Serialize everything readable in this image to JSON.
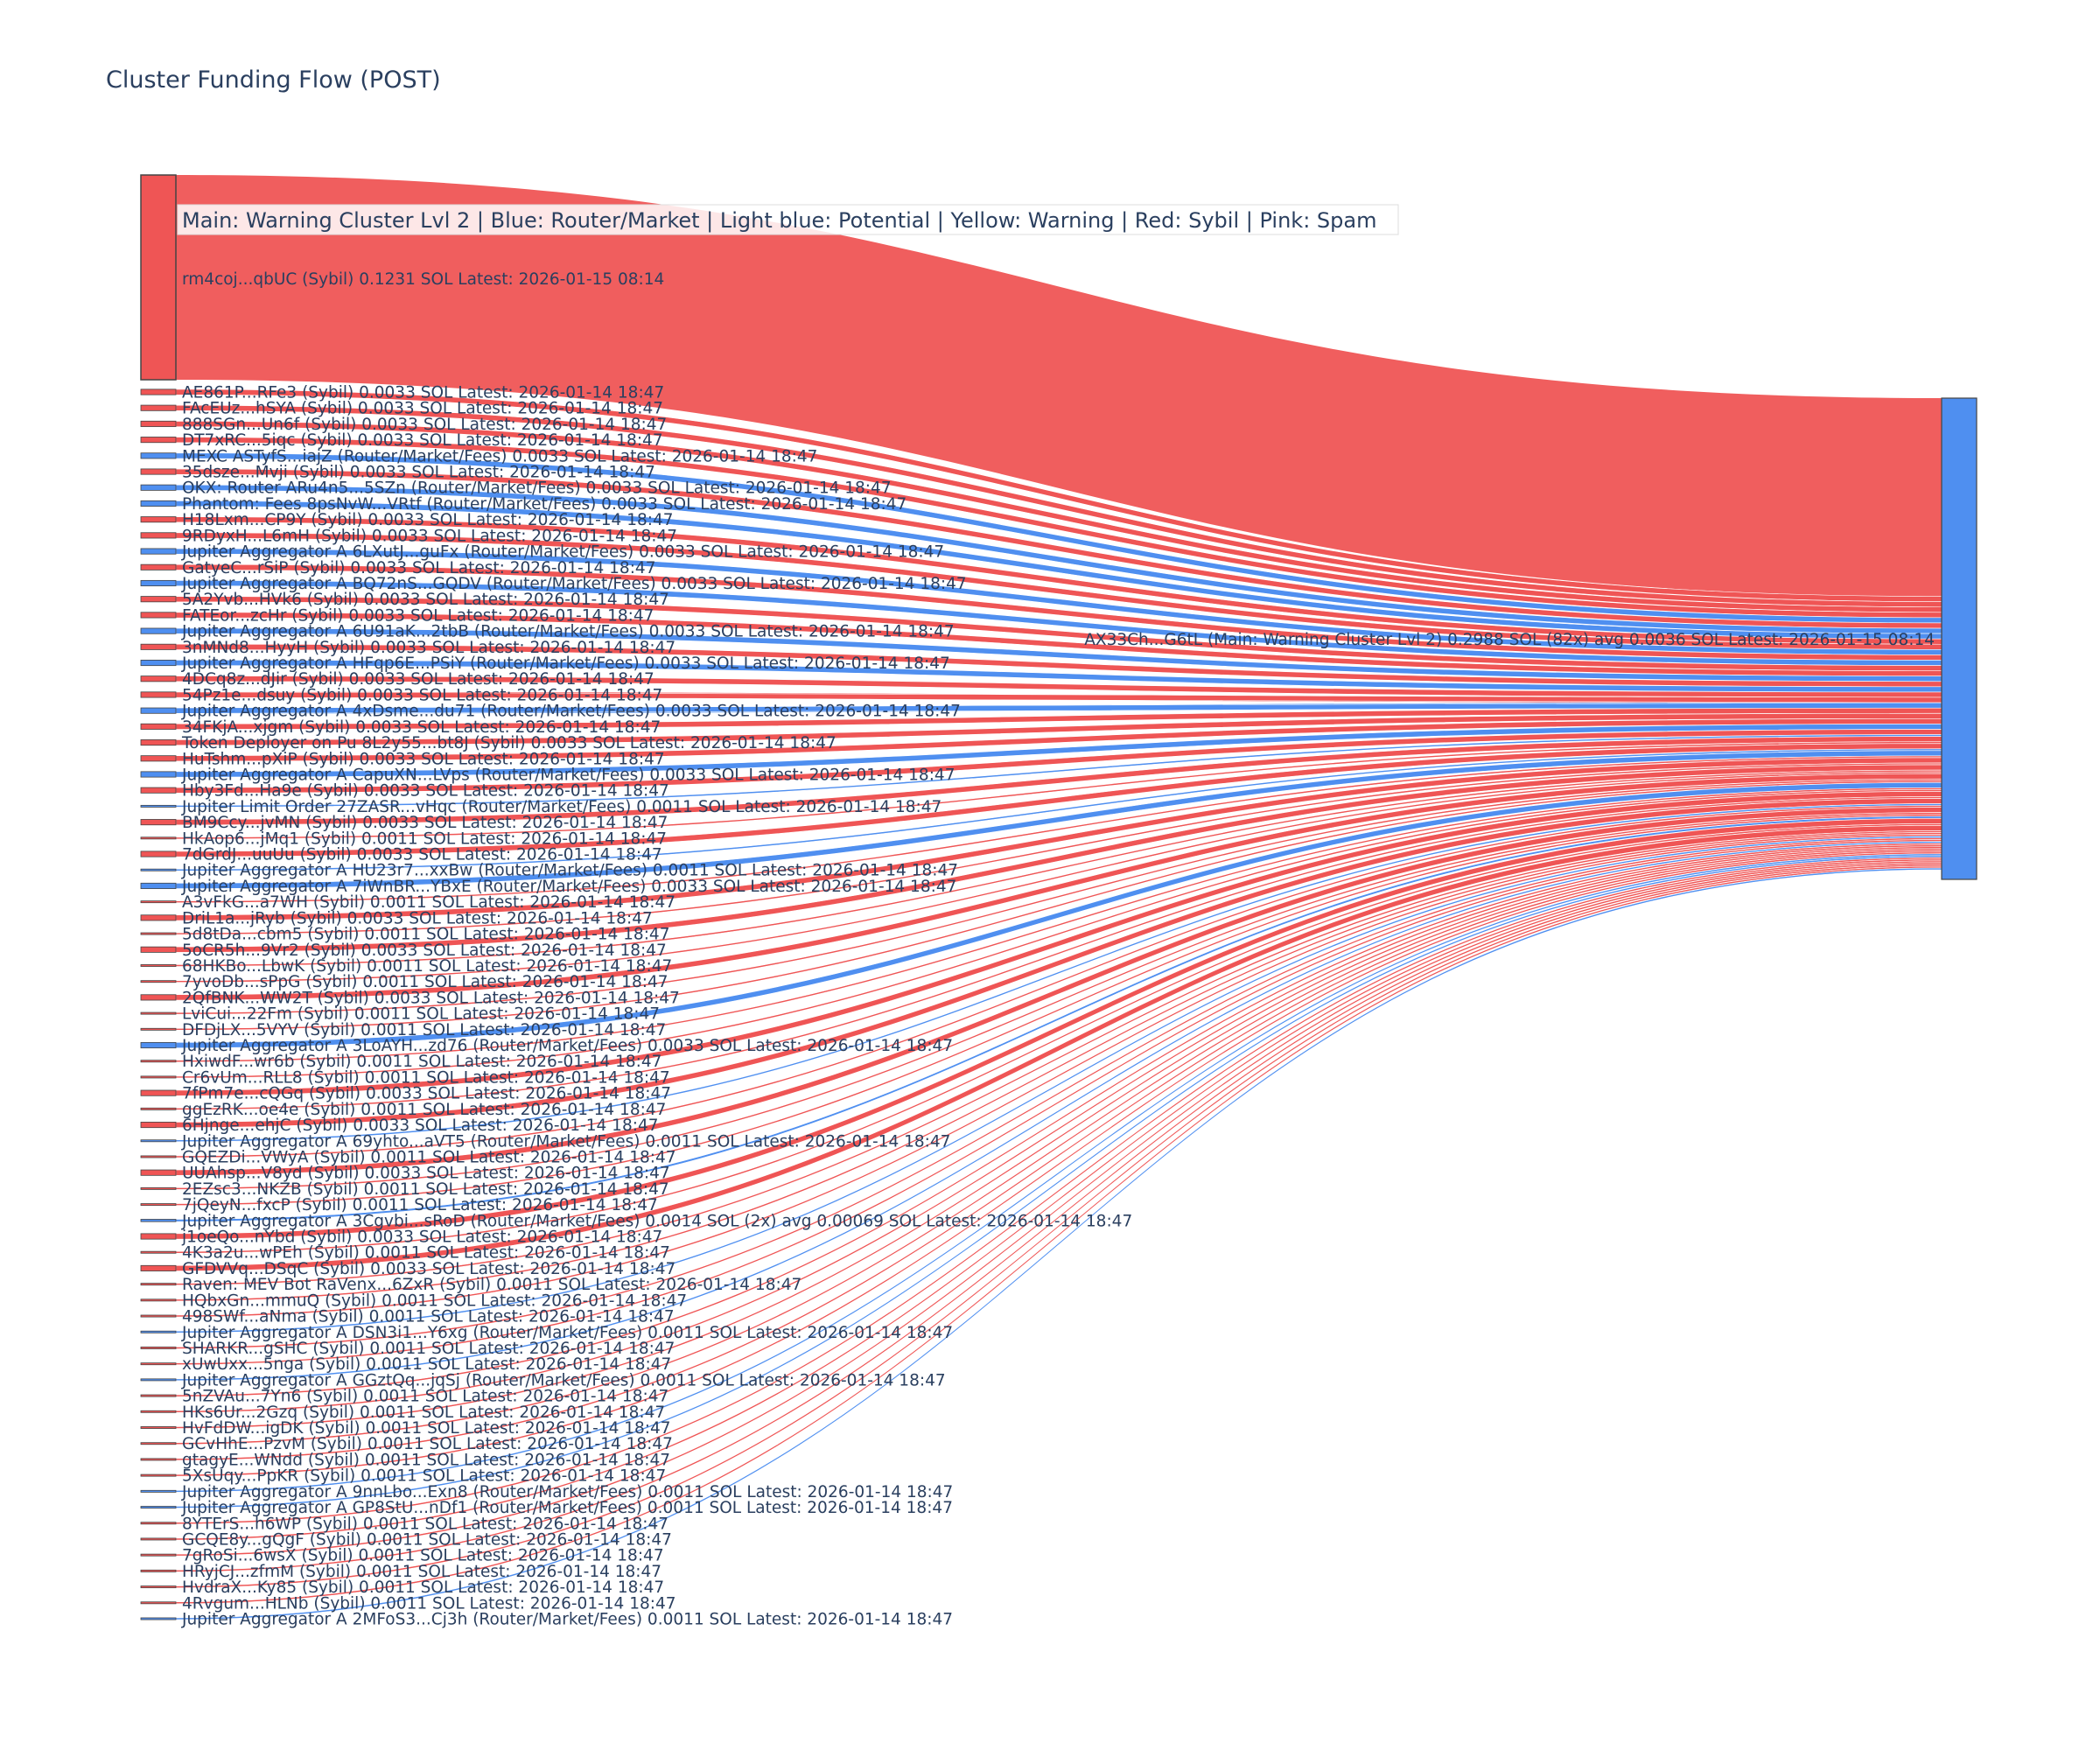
{
  "colors": {
    "sybil": "#ef5555",
    "router": "#4f8ff0",
    "target": "#4f8ff0",
    "node_border": "#444444",
    "text": "#2a3f5f",
    "legend_bg": "#ffffff"
  },
  "chart_data": {
    "type": "sankey",
    "title": "Cluster Funding Flow (POST)",
    "legend_text": "Main: Warning Cluster Lvl 2  |  Blue: Router/Market | Light blue: Potential | Yellow: Warning | Red: Sybil | Pink: Spam",
    "target": {
      "label": "AX33Ch...G6tL (Main: Warning Cluster Lvl 2) 0.2988 SOL (82x) avg 0.0036 SOL Latest: 2026-01-15 08:14",
      "value": 0.2988,
      "category": "main"
    },
    "sources": [
      {
        "label": "rm4coj...qbUC (Sybil) 0.1231 SOL Latest: 2026-01-15 08:14",
        "value": 0.1231,
        "category": "sybil"
      },
      {
        "label": "AE861P...RFe3 (Sybil) 0.0033 SOL Latest: 2026-01-14 18:47",
        "value": 0.0033,
        "category": "sybil"
      },
      {
        "label": "FAcEUz...hSYA (Sybil) 0.0033 SOL Latest: 2026-01-14 18:47",
        "value": 0.0033,
        "category": "sybil"
      },
      {
        "label": "888SGn...Un6f (Sybil) 0.0033 SOL Latest: 2026-01-14 18:47",
        "value": 0.0033,
        "category": "sybil"
      },
      {
        "label": "DT7xRC...5iqc (Sybil) 0.0033 SOL Latest: 2026-01-14 18:47",
        "value": 0.0033,
        "category": "sybil"
      },
      {
        "label": "MEXC ASTyfS...iajZ (Router/Market/Fees) 0.0033 SOL Latest: 2026-01-14 18:47",
        "value": 0.0033,
        "category": "router"
      },
      {
        "label": "35dsze...Mvji (Sybil) 0.0033 SOL Latest: 2026-01-14 18:47",
        "value": 0.0033,
        "category": "sybil"
      },
      {
        "label": "OKX: Router ARu4n5...5SZn (Router/Market/Fees) 0.0033 SOL Latest: 2026-01-14 18:47",
        "value": 0.0033,
        "category": "router"
      },
      {
        "label": "Phantom: Fees 8psNvW...VRtf (Router/Market/Fees) 0.0033 SOL Latest: 2026-01-14 18:47",
        "value": 0.0033,
        "category": "router"
      },
      {
        "label": "H18Lxm...CP9Y (Sybil) 0.0033 SOL Latest: 2026-01-14 18:47",
        "value": 0.0033,
        "category": "sybil"
      },
      {
        "label": "9RDyxH...L6mH (Sybil) 0.0033 SOL Latest: 2026-01-14 18:47",
        "value": 0.0033,
        "category": "sybil"
      },
      {
        "label": "Jupiter Aggregator A 6LXutJ...guFx (Router/Market/Fees) 0.0033 SOL Latest: 2026-01-14 18:47",
        "value": 0.0033,
        "category": "router"
      },
      {
        "label": "GatyeC...rSiP (Sybil) 0.0033 SOL Latest: 2026-01-14 18:47",
        "value": 0.0033,
        "category": "sybil"
      },
      {
        "label": "Jupiter Aggregator A BQ72nS...GQDV (Router/Market/Fees) 0.0033 SOL Latest: 2026-01-14 18:47",
        "value": 0.0033,
        "category": "router"
      },
      {
        "label": "5A2Yvb...HVk6 (Sybil) 0.0033 SOL Latest: 2026-01-14 18:47",
        "value": 0.0033,
        "category": "sybil"
      },
      {
        "label": "FATEor...zcHr (Sybil) 0.0033 SOL Latest: 2026-01-14 18:47",
        "value": 0.0033,
        "category": "sybil"
      },
      {
        "label": "Jupiter Aggregator A 6U91aK...2tbB (Router/Market/Fees) 0.0033 SOL Latest: 2026-01-14 18:47",
        "value": 0.0033,
        "category": "router"
      },
      {
        "label": "3nMNd8...HyyH (Sybil) 0.0033 SOL Latest: 2026-01-14 18:47",
        "value": 0.0033,
        "category": "sybil"
      },
      {
        "label": "Jupiter Aggregator A HFqp6E...PSiY (Router/Market/Fees) 0.0033 SOL Latest: 2026-01-14 18:47",
        "value": 0.0033,
        "category": "router"
      },
      {
        "label": "4DCq8z...dJir (Sybil) 0.0033 SOL Latest: 2026-01-14 18:47",
        "value": 0.0033,
        "category": "sybil"
      },
      {
        "label": "54Pz1e...dsuy (Sybil) 0.0033 SOL Latest: 2026-01-14 18:47",
        "value": 0.0033,
        "category": "sybil"
      },
      {
        "label": "Jupiter Aggregator A 4xDsme...du71 (Router/Market/Fees) 0.0033 SOL Latest: 2026-01-14 18:47",
        "value": 0.0033,
        "category": "router"
      },
      {
        "label": "34FKjA...xjgm (Sybil) 0.0033 SOL Latest: 2026-01-14 18:47",
        "value": 0.0033,
        "category": "sybil"
      },
      {
        "label": "Token Deployer on Pu 8L2y55...bt8J (Sybil) 0.0033 SOL Latest: 2026-01-14 18:47",
        "value": 0.0033,
        "category": "sybil"
      },
      {
        "label": "HuTshm...pXiP (Sybil) 0.0033 SOL Latest: 2026-01-14 18:47",
        "value": 0.0033,
        "category": "sybil"
      },
      {
        "label": "Jupiter Aggregator A CapuXN...LVps (Router/Market/Fees) 0.0033 SOL Latest: 2026-01-14 18:47",
        "value": 0.0033,
        "category": "router"
      },
      {
        "label": "Hby3Fd...Ha9e (Sybil) 0.0033 SOL Latest: 2026-01-14 18:47",
        "value": 0.0033,
        "category": "sybil"
      },
      {
        "label": "Jupiter Limit Order  27ZASR...vHqc (Router/Market/Fees) 0.0011 SOL Latest: 2026-01-14 18:47",
        "value": 0.0011,
        "category": "router"
      },
      {
        "label": "BM9Ccy...jvMN (Sybil) 0.0033 SOL Latest: 2026-01-14 18:47",
        "value": 0.0033,
        "category": "sybil"
      },
      {
        "label": "HkAop6...jMq1 (Sybil) 0.0011 SOL Latest: 2026-01-14 18:47",
        "value": 0.0011,
        "category": "sybil"
      },
      {
        "label": "7dGrdJ...uuUu (Sybil) 0.0033 SOL Latest: 2026-01-14 18:47",
        "value": 0.0033,
        "category": "sybil"
      },
      {
        "label": "Jupiter Aggregator A HU23r7...xxBw (Router/Market/Fees) 0.0011 SOL Latest: 2026-01-14 18:47",
        "value": 0.0011,
        "category": "router"
      },
      {
        "label": "Jupiter Aggregator A 7iWnBR...YBxE (Router/Market/Fees) 0.0033 SOL Latest: 2026-01-14 18:47",
        "value": 0.0033,
        "category": "router"
      },
      {
        "label": "A3vFkG...a7WH (Sybil) 0.0011 SOL Latest: 2026-01-14 18:47",
        "value": 0.0011,
        "category": "sybil"
      },
      {
        "label": "DriL1a...jRyb (Sybil) 0.0033 SOL Latest: 2026-01-14 18:47",
        "value": 0.0033,
        "category": "sybil"
      },
      {
        "label": "5d8tDa...cbm5 (Sybil) 0.0011 SOL Latest: 2026-01-14 18:47",
        "value": 0.0011,
        "category": "sybil"
      },
      {
        "label": "5oCR5h...9Vr2 (Sybil) 0.0033 SOL Latest: 2026-01-14 18:47",
        "value": 0.0033,
        "category": "sybil"
      },
      {
        "label": "68HKBo...LbwK (Sybil) 0.0011 SOL Latest: 2026-01-14 18:47",
        "value": 0.0011,
        "category": "sybil"
      },
      {
        "label": "7yvoDb...sPpG (Sybil) 0.0011 SOL Latest: 2026-01-14 18:47",
        "value": 0.0011,
        "category": "sybil"
      },
      {
        "label": "2QfBNK...WW2T (Sybil) 0.0033 SOL Latest: 2026-01-14 18:47",
        "value": 0.0033,
        "category": "sybil"
      },
      {
        "label": "LviCui...22Fm (Sybil) 0.0011 SOL Latest: 2026-01-14 18:47",
        "value": 0.0011,
        "category": "sybil"
      },
      {
        "label": "DFDjLX...5VYV (Sybil) 0.0011 SOL Latest: 2026-01-14 18:47",
        "value": 0.0011,
        "category": "sybil"
      },
      {
        "label": "Jupiter Aggregator A 3LoAYH...zd76 (Router/Market/Fees) 0.0033 SOL Latest: 2026-01-14 18:47",
        "value": 0.0033,
        "category": "router"
      },
      {
        "label": "HxiwdF...wr6b (Sybil) 0.0011 SOL Latest: 2026-01-14 18:47",
        "value": 0.0011,
        "category": "sybil"
      },
      {
        "label": "Cr6vUm...RLL8 (Sybil) 0.0011 SOL Latest: 2026-01-14 18:47",
        "value": 0.0011,
        "category": "sybil"
      },
      {
        "label": "7fPm7e...cQGq (Sybil) 0.0033 SOL Latest: 2026-01-14 18:47",
        "value": 0.0033,
        "category": "sybil"
      },
      {
        "label": "ggEzRK...oe4e (Sybil) 0.0011 SOL Latest: 2026-01-14 18:47",
        "value": 0.0011,
        "category": "sybil"
      },
      {
        "label": "6Hjnge...ehjC (Sybil) 0.0033 SOL Latest: 2026-01-14 18:47",
        "value": 0.0033,
        "category": "sybil"
      },
      {
        "label": "Jupiter Aggregator A 69yhto...aVT5 (Router/Market/Fees) 0.0011 SOL Latest: 2026-01-14 18:47",
        "value": 0.0011,
        "category": "router"
      },
      {
        "label": "GQEZDi...VWyA (Sybil) 0.0011 SOL Latest: 2026-01-14 18:47",
        "value": 0.0011,
        "category": "sybil"
      },
      {
        "label": "UUAhsp...V8yd (Sybil) 0.0033 SOL Latest: 2026-01-14 18:47",
        "value": 0.0033,
        "category": "sybil"
      },
      {
        "label": "2EZsc3...NKZB (Sybil) 0.0011 SOL Latest: 2026-01-14 18:47",
        "value": 0.0011,
        "category": "sybil"
      },
      {
        "label": "7jQeyN...fxcP (Sybil) 0.0011 SOL Latest: 2026-01-14 18:47",
        "value": 0.0011,
        "category": "sybil"
      },
      {
        "label": "Jupiter Aggregator A 3Cgvbi...sRoD (Router/Market/Fees) 0.0014 SOL (2x) avg 0.00069 SOL Latest: 2026-01-14 18:47",
        "value": 0.0014,
        "category": "router"
      },
      {
        "label": "j1oeQo...nYbd (Sybil) 0.0033 SOL Latest: 2026-01-14 18:47",
        "value": 0.0033,
        "category": "sybil"
      },
      {
        "label": "4K3a2u...wPEh (Sybil) 0.0011 SOL Latest: 2026-01-14 18:47",
        "value": 0.0011,
        "category": "sybil"
      },
      {
        "label": "GFDVVq...DSqC (Sybil) 0.0033 SOL Latest: 2026-01-14 18:47",
        "value": 0.0033,
        "category": "sybil"
      },
      {
        "label": "Raven: MEV Bot RaVenx...6ZxR (Sybil) 0.0011 SOL Latest: 2026-01-14 18:47",
        "value": 0.0011,
        "category": "sybil"
      },
      {
        "label": "HQbxGn...mmuQ (Sybil) 0.0011 SOL Latest: 2026-01-14 18:47",
        "value": 0.0011,
        "category": "sybil"
      },
      {
        "label": "498SWf...aNma (Sybil) 0.0011 SOL Latest: 2026-01-14 18:47",
        "value": 0.0011,
        "category": "sybil"
      },
      {
        "label": "Jupiter Aggregator A DSN3i1...Y6xg (Router/Market/Fees) 0.0011 SOL Latest: 2026-01-14 18:47",
        "value": 0.0011,
        "category": "router"
      },
      {
        "label": "SHARKR...gSHC (Sybil) 0.0011 SOL Latest: 2026-01-14 18:47",
        "value": 0.0011,
        "category": "sybil"
      },
      {
        "label": "xUwUxx...5nga (Sybil) 0.0011 SOL Latest: 2026-01-14 18:47",
        "value": 0.0011,
        "category": "sybil"
      },
      {
        "label": "Jupiter Aggregator A GGztQq...jqSj (Router/Market/Fees) 0.0011 SOL Latest: 2026-01-14 18:47",
        "value": 0.0011,
        "category": "router"
      },
      {
        "label": "5nZVAu...7Yn6 (Sybil) 0.0011 SOL Latest: 2026-01-14 18:47",
        "value": 0.0011,
        "category": "sybil"
      },
      {
        "label": "HKs6Ur...2Gzq (Sybil) 0.0011 SOL Latest: 2026-01-14 18:47",
        "value": 0.0011,
        "category": "sybil"
      },
      {
        "label": "HvFdDW...igDK (Sybil) 0.0011 SOL Latest: 2026-01-14 18:47",
        "value": 0.0011,
        "category": "sybil"
      },
      {
        "label": "GCvHhE...PzvM (Sybil) 0.0011 SOL Latest: 2026-01-14 18:47",
        "value": 0.0011,
        "category": "sybil"
      },
      {
        "label": "gtagyE...WNdd (Sybil) 0.0011 SOL Latest: 2026-01-14 18:47",
        "value": 0.0011,
        "category": "sybil"
      },
      {
        "label": "5XsUqy...PpKR (Sybil) 0.0011 SOL Latest: 2026-01-14 18:47",
        "value": 0.0011,
        "category": "sybil"
      },
      {
        "label": "Jupiter Aggregator A 9nnLbo...Exn8 (Router/Market/Fees) 0.0011 SOL Latest: 2026-01-14 18:47",
        "value": 0.0011,
        "category": "router"
      },
      {
        "label": "Jupiter Aggregator A GP8StU...nDf1 (Router/Market/Fees) 0.0011 SOL Latest: 2026-01-14 18:47",
        "value": 0.0011,
        "category": "router"
      },
      {
        "label": "8YTErS...h6WP (Sybil) 0.0011 SOL Latest: 2026-01-14 18:47",
        "value": 0.0011,
        "category": "sybil"
      },
      {
        "label": "GCQE8y...gQgF (Sybil) 0.0011 SOL Latest: 2026-01-14 18:47",
        "value": 0.0011,
        "category": "sybil"
      },
      {
        "label": "7gRoSi...6wsX (Sybil) 0.0011 SOL Latest: 2026-01-14 18:47",
        "value": 0.0011,
        "category": "sybil"
      },
      {
        "label": "HRyjCJ...zfmM (Sybil) 0.0011 SOL Latest: 2026-01-14 18:47",
        "value": 0.0011,
        "category": "sybil"
      },
      {
        "label": "HvdraX...Ky85 (Sybil) 0.0011 SOL Latest: 2026-01-14 18:47",
        "value": 0.0011,
        "category": "sybil"
      },
      {
        "label": "4Rvgum...HLNb (Sybil) 0.0011 SOL Latest: 2026-01-14 18:47",
        "value": 0.0011,
        "category": "sybil"
      },
      {
        "label": "Jupiter Aggregator A 2MFoS3...Cj3h (Router/Market/Fees) 0.0011 SOL Latest: 2026-01-14 18:47",
        "value": 0.0011,
        "category": "router"
      }
    ]
  }
}
